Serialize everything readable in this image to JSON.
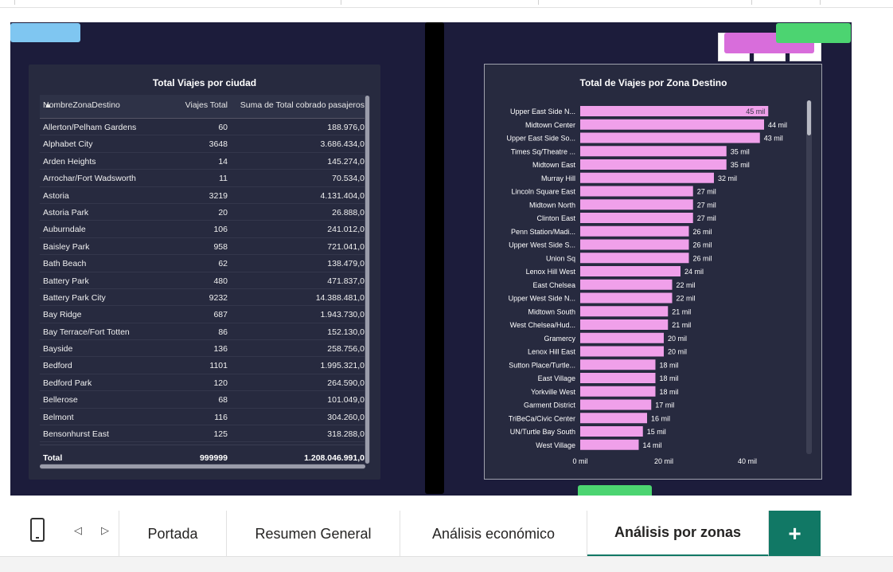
{
  "table": {
    "title": "Total Viajes por ciudad",
    "headers": [
      "NombreZonaDestino",
      "Viajes Total",
      "Suma de Total cobrado pasajeros"
    ],
    "rows": [
      [
        "Allerton/Pelham Gardens",
        "60",
        "188.976,0"
      ],
      [
        "Alphabet City",
        "3648",
        "3.686.434,0"
      ],
      [
        "Arden Heights",
        "14",
        "145.274,0"
      ],
      [
        "Arrochar/Fort Wadsworth",
        "11",
        "70.534,0"
      ],
      [
        "Astoria",
        "3219",
        "4.131.404,0"
      ],
      [
        "Astoria Park",
        "20",
        "26.888,0"
      ],
      [
        "Auburndale",
        "106",
        "241.012,0"
      ],
      [
        "Baisley Park",
        "958",
        "721.041,0"
      ],
      [
        "Bath Beach",
        "62",
        "138.479,0"
      ],
      [
        "Battery Park",
        "480",
        "471.837,0"
      ],
      [
        "Battery Park City",
        "9232",
        "14.388.481,0"
      ],
      [
        "Bay Ridge",
        "687",
        "1.943.730,0"
      ],
      [
        "Bay Terrace/Fort Totten",
        "86",
        "152.130,0"
      ],
      [
        "Bayside",
        "136",
        "258.756,0"
      ],
      [
        "Bedford",
        "1101",
        "1.995.321,0"
      ],
      [
        "Bedford Park",
        "120",
        "264.590,0"
      ],
      [
        "Bellerose",
        "68",
        "101.049,0"
      ],
      [
        "Belmont",
        "116",
        "304.260,0"
      ],
      [
        "Bensonhurst East",
        "125",
        "318.288,0"
      ]
    ],
    "total": [
      "Total",
      "999999",
      "1.208.046.991,0"
    ]
  },
  "chart_data": {
    "type": "bar",
    "orientation": "horizontal",
    "title": "Total de Viajes por Zona Destino",
    "categories": [
      "Upper East Side N...",
      "Midtown Center",
      "Upper East Side So...",
      "Times Sq/Theatre ...",
      "Midtown East",
      "Murray Hill",
      "Lincoln Square East",
      "Midtown North",
      "Clinton East",
      "Penn Station/Madi...",
      "Upper West Side S...",
      "Union Sq",
      "Lenox Hill West",
      "East Chelsea",
      "Upper West Side N...",
      "Midtown South",
      "West Chelsea/Hud...",
      "Gramercy",
      "Lenox Hill East",
      "Sutton Place/Turtle...",
      "East Village",
      "Yorkville West",
      "Garment District",
      "TriBeCa/Civic Center",
      "UN/Turtle Bay South",
      "West Village"
    ],
    "values": [
      45,
      44,
      43,
      35,
      35,
      32,
      27,
      27,
      27,
      26,
      26,
      26,
      24,
      22,
      22,
      21,
      21,
      20,
      20,
      18,
      18,
      18,
      17,
      16,
      15,
      14
    ],
    "data_labels": [
      "45 mil",
      "44 mil",
      "43 mil",
      "35 mil",
      "35 mil",
      "32 mil",
      "27 mil",
      "27 mil",
      "27 mil",
      "26 mil",
      "26 mil",
      "26 mil",
      "24 mil",
      "22 mil",
      "22 mil",
      "21 mil",
      "21 mil",
      "20 mil",
      "20 mil",
      "18 mil",
      "18 mil",
      "18 mil",
      "17 mil",
      "16 mil",
      "15 mil",
      "14 mil"
    ],
    "x_ticks": [
      "0 mil",
      "20 mil",
      "40 mil"
    ],
    "xlim": [
      0,
      47
    ],
    "bar_color": "#f0a0ea",
    "grid": false
  },
  "tabs": {
    "items": [
      "Portada",
      "Resumen General",
      "Análisis económico",
      "Análisis por zonas"
    ],
    "active": "Análisis por zonas",
    "add_label": "+"
  },
  "colors": {
    "canvas": "#1c1c3b",
    "panel": "#272a3f",
    "accent": "#117865"
  }
}
